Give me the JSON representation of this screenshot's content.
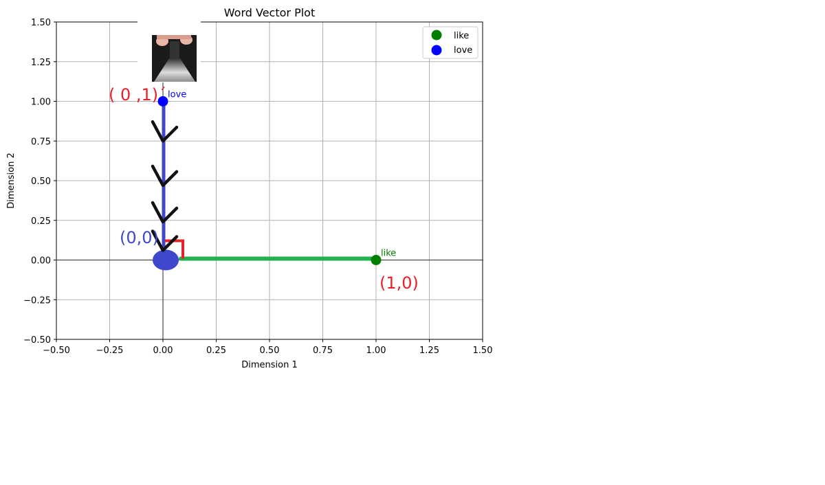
{
  "colors": {
    "like": "#008000",
    "love": "#0000ff",
    "annotation_red": "#e8202a",
    "annotation_blue": "#3f48cc",
    "annotation_green": "#22b14c",
    "grid": "#b0b0b0",
    "axis": "#000000"
  },
  "chart_data": {
    "type": "scatter",
    "title": "Word Vector Plot",
    "xlabel": "Dimension 1",
    "ylabel": "Dimension 2",
    "xlim": [
      -0.5,
      1.5
    ],
    "ylim": [
      -0.5,
      1.5
    ],
    "xticks": [
      -0.5,
      -0.25,
      0.0,
      0.25,
      0.5,
      0.75,
      1.0,
      1.25,
      1.5
    ],
    "xtick_labels": [
      "−0.50",
      "−0.25",
      "0.00",
      "0.25",
      "0.50",
      "0.75",
      "1.00",
      "1.25",
      "1.50"
    ],
    "yticks": [
      -0.5,
      -0.25,
      0.0,
      0.25,
      0.5,
      0.75,
      1.0,
      1.25,
      1.5
    ],
    "ytick_labels": [
      "−0.50",
      "−0.25",
      "0.00",
      "0.25",
      "0.50",
      "0.75",
      "1.00",
      "1.25",
      "1.50"
    ],
    "grid": true,
    "zero_lines": true,
    "legend_position": "top-right",
    "series": [
      {
        "name": "like",
        "color": "#008000",
        "points": [
          {
            "x": 1.0,
            "y": 0.0,
            "label": "like"
          }
        ]
      },
      {
        "name": "love",
        "color": "#0000ff",
        "points": [
          {
            "x": 0.0,
            "y": 1.0,
            "label": "love"
          }
        ]
      }
    ],
    "annotations": {
      "love_coord": "( 0 ,1)´",
      "origin_coord": "(0,0)",
      "like_coord": "(1,0)"
    }
  }
}
